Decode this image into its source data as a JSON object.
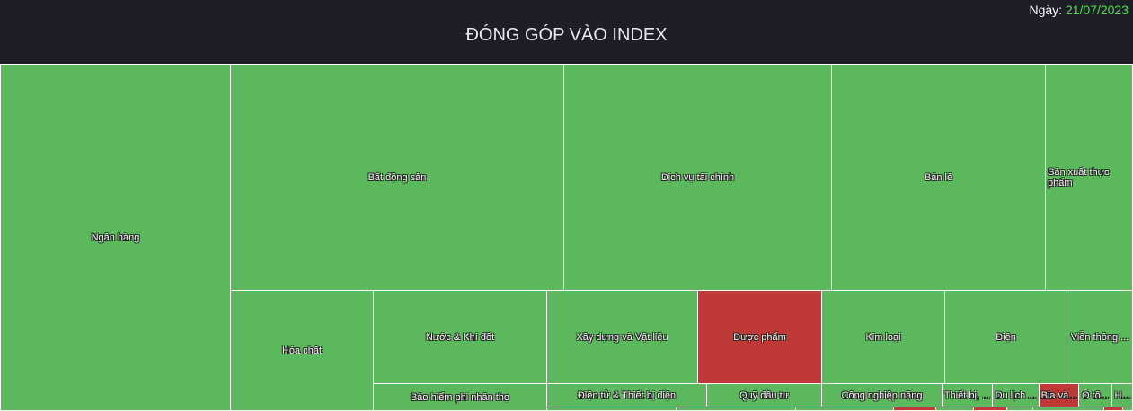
{
  "header": {
    "title": "ĐÓNG GÓP VÀO INDEX",
    "date_label": "Ngày:",
    "date_value": "21/07/2023"
  },
  "colors": {
    "up": "#5cb85c",
    "down": "#bf3a36",
    "border": "#ffffff",
    "background": "#1e1e28"
  },
  "chart_data": {
    "type": "treemap",
    "title": "ĐÓNG GÓP VÀO INDEX",
    "tiles": [
      {
        "label": "Ngân hàng",
        "direction": "up"
      },
      {
        "label": "Bất động sản",
        "direction": "up"
      },
      {
        "label": "Dịch vụ tài chính",
        "direction": "up"
      },
      {
        "label": "Bán lẻ",
        "direction": "up"
      },
      {
        "label": "Sản xuất thực phẩm",
        "direction": "up"
      },
      {
        "label": "Hóa chất",
        "direction": "up"
      },
      {
        "label": "Nước & Khí đốt",
        "direction": "up"
      },
      {
        "label": "Xây dựng và Vật liệu",
        "direction": "up"
      },
      {
        "label": "Dược phẩm",
        "direction": "down"
      },
      {
        "label": "Kim loại",
        "direction": "up"
      },
      {
        "label": "Điện",
        "direction": "up"
      },
      {
        "label": "Viễn thông ...",
        "direction": "up"
      },
      {
        "label": "Bảo hiểm phi nhân thọ",
        "direction": "up"
      },
      {
        "label": "Điện tử & Thiết bị điện",
        "direction": "up"
      },
      {
        "label": "Quỹ đầu tư",
        "direction": "up"
      },
      {
        "label": "Công nghiệp nặng",
        "direction": "up"
      },
      {
        "label": "Thiết bị, ...",
        "direction": "up"
      },
      {
        "label": "Du lịch ...",
        "direction": "up"
      },
      {
        "label": "Bia và...",
        "direction": "down"
      },
      {
        "label": "Ô tô...",
        "direction": "up"
      },
      {
        "label": "H...",
        "direction": "up"
      },
      {
        "label": "",
        "direction": "up"
      },
      {
        "label": "",
        "direction": "up"
      },
      {
        "label": "",
        "direction": "up"
      },
      {
        "label": "",
        "direction": "down"
      },
      {
        "label": "",
        "direction": "up"
      },
      {
        "label": "",
        "direction": "down"
      },
      {
        "label": "",
        "direction": "up"
      },
      {
        "label": "",
        "direction": "up"
      },
      {
        "label": "",
        "direction": "down"
      },
      {
        "label": "",
        "direction": "up"
      }
    ]
  }
}
